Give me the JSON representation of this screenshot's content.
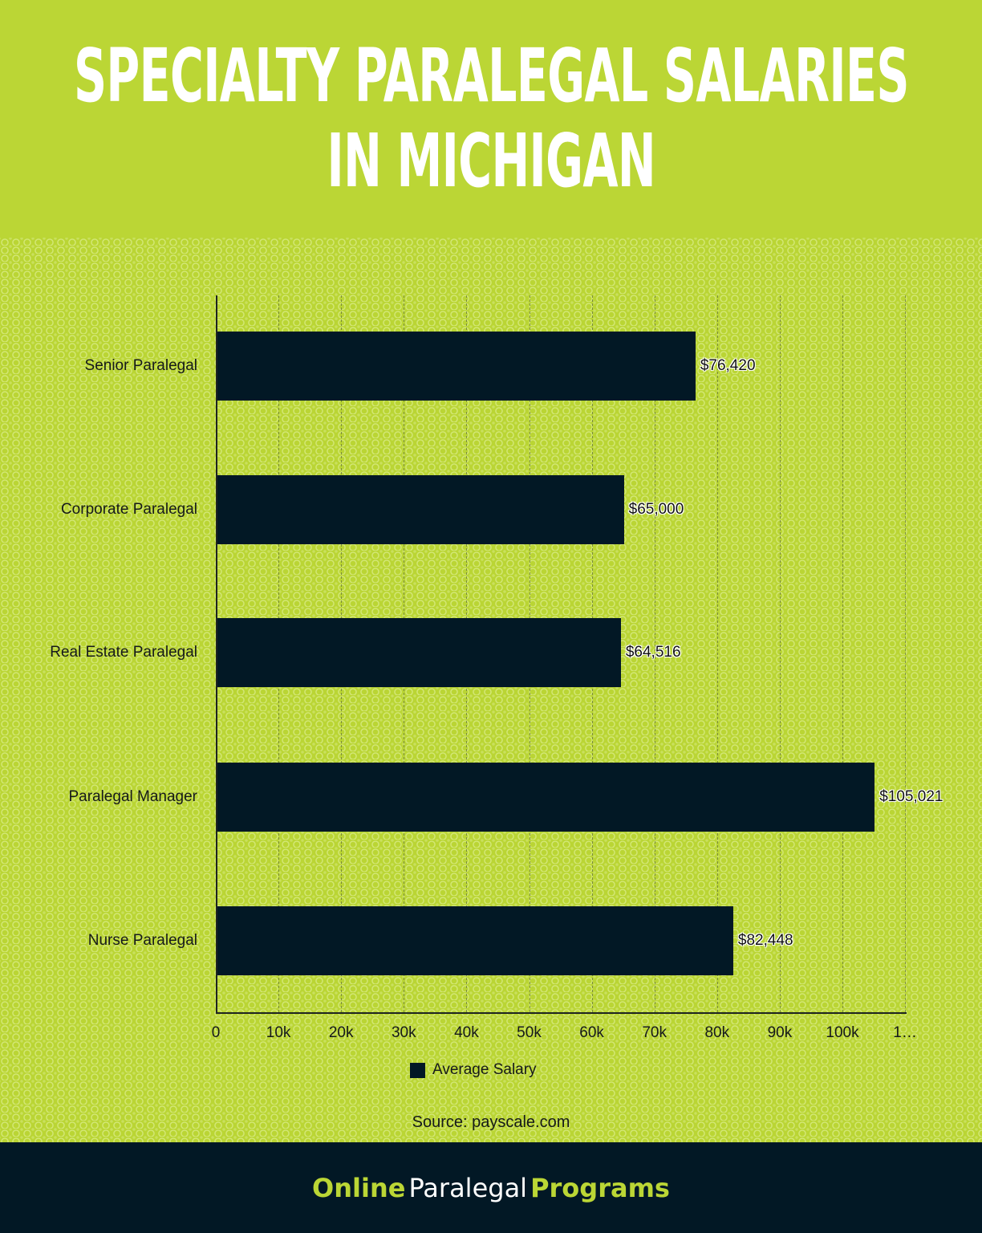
{
  "header": {
    "title_line1": "Specialty Paralegal Salaries",
    "title_line2": "in Michigan"
  },
  "chart_data": {
    "type": "bar",
    "orientation": "horizontal",
    "title": "Specialty Paralegal Salaries in Michigan",
    "categories": [
      "Senior Paralegal",
      "Corporate Paralegal",
      "Real Estate Paralegal",
      "Paralegal Manager",
      "Nurse Paralegal"
    ],
    "series": [
      {
        "name": "Average Salary",
        "values": [
          76420,
          65000,
          64516,
          105021,
          82448
        ],
        "color": "#021825"
      }
    ],
    "value_labels": [
      "$76,420",
      "$65,000",
      "$64,516",
      "$105,021",
      "$82,448"
    ],
    "xlabel": "",
    "ylabel": "",
    "xlim": [
      0,
      110000
    ],
    "x_ticks": [
      "0",
      "10k",
      "20k",
      "30k",
      "40k",
      "50k",
      "60k",
      "70k",
      "80k",
      "90k",
      "100k",
      "1…"
    ],
    "grid": "vertical dashed",
    "legend_position": "bottom"
  },
  "legend": {
    "label": "Average Salary"
  },
  "source": "Source: payscale.com",
  "footer": {
    "brand_part1": "Online",
    "brand_part2": "Paralegal",
    "brand_part3": "Programs"
  },
  "colors": {
    "header_bg": "#bbd635",
    "bar": "#021825",
    "footer_bg": "#021825",
    "brand_accent": "#bbd635"
  }
}
